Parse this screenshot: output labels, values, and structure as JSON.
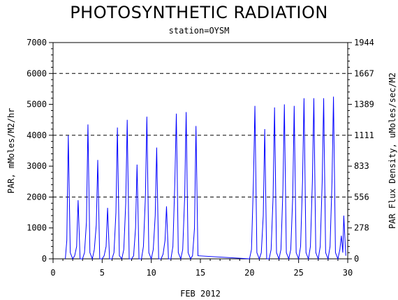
{
  "header": {
    "title": "PHOTOSYNTHETIC RADIATION",
    "subtitle": "station=OYSM"
  },
  "chart_data": {
    "type": "line",
    "title": "PHOTOSYNTHETIC RADIATION",
    "subtitle": "station=OYSM",
    "xlabel": "FEB 2012",
    "ylabel": "PAR, mMoles/M2/hr",
    "y2label": "PAR Flux Density, uMoles/sec/M2",
    "xlim": [
      0,
      30
    ],
    "ylim": [
      0,
      7000
    ],
    "xticks": [
      "0",
      "5",
      "10",
      "15",
      "20",
      "25",
      "30"
    ],
    "yticks": [
      "0",
      "1000",
      "2000",
      "3000",
      "4000",
      "5000",
      "6000",
      "7000"
    ],
    "y2ticks": [
      "0",
      "278",
      "556",
      "833",
      "1111",
      "1389",
      "1667",
      "1944"
    ],
    "gridlines_y": [
      2000,
      4000,
      6000
    ],
    "line_color": "#0000ff",
    "series": [
      {
        "x": [
          1.25,
          1.4,
          1.55,
          1.75,
          2.0,
          2.2,
          2.4,
          2.55,
          2.75,
          3.0,
          3.2,
          3.4,
          3.55,
          3.75,
          4.0,
          4.2,
          4.4,
          4.55,
          4.75,
          5.0,
          5.2,
          5.4,
          5.55,
          5.75,
          6.0,
          6.2,
          6.4,
          6.55,
          6.75,
          7.0,
          7.2,
          7.4,
          7.55,
          7.75,
          8.0,
          8.2,
          8.4,
          8.55,
          8.75,
          9.0,
          9.2,
          9.4,
          9.55,
          9.75,
          10.0,
          10.2,
          10.4,
          10.55,
          10.75,
          11.0,
          11.2,
          11.4,
          11.55,
          11.75,
          12.0,
          12.2,
          12.4,
          12.55,
          12.75,
          13.0,
          13.2,
          13.4,
          13.55,
          13.75,
          14.0,
          14.2,
          14.4,
          14.55,
          14.75,
          20.0,
          20.2,
          20.4,
          20.55,
          20.75,
          21.0,
          21.2,
          21.4,
          21.55,
          21.75,
          22.0,
          22.2,
          22.4,
          22.55,
          22.75,
          23.0,
          23.2,
          23.4,
          23.55,
          23.75,
          24.0,
          24.2,
          24.4,
          24.55,
          24.75,
          25.0,
          25.2,
          25.4,
          25.55,
          25.75,
          26.0,
          26.2,
          26.4,
          26.55,
          26.75,
          27.0,
          27.2,
          27.4,
          27.55,
          27.75,
          28.0,
          28.2,
          28.4,
          28.55,
          28.75,
          29.0,
          29.2,
          29.35,
          29.5,
          29.6,
          29.8
        ],
        "y": [
          0,
          600,
          4000,
          200,
          0,
          100,
          400,
          1900,
          0,
          0,
          200,
          1200,
          4350,
          200,
          0,
          300,
          1100,
          3200,
          0,
          0,
          100,
          400,
          1650,
          0,
          0,
          200,
          1500,
          4250,
          100,
          0,
          300,
          1800,
          4500,
          0,
          0,
          100,
          1000,
          3050,
          0,
          0,
          400,
          2000,
          4600,
          200,
          0,
          300,
          1400,
          3600,
          0,
          0,
          150,
          600,
          1700,
          0,
          0,
          400,
          2500,
          4700,
          200,
          0,
          300,
          2000,
          4750,
          200,
          0,
          100,
          1000,
          4300,
          100,
          0,
          300,
          2500,
          4950,
          200,
          0,
          200,
          1400,
          4200,
          0,
          0,
          300,
          2000,
          4900,
          200,
          0,
          300,
          2200,
          5000,
          200,
          0,
          300,
          2000,
          4950,
          200,
          0,
          400,
          2500,
          5200,
          200,
          0,
          400,
          2500,
          5200,
          200,
          0,
          400,
          2500,
          5200,
          200,
          0,
          400,
          2500,
          5250,
          200,
          0,
          300,
          750,
          200,
          1400,
          100
        ]
      }
    ]
  }
}
